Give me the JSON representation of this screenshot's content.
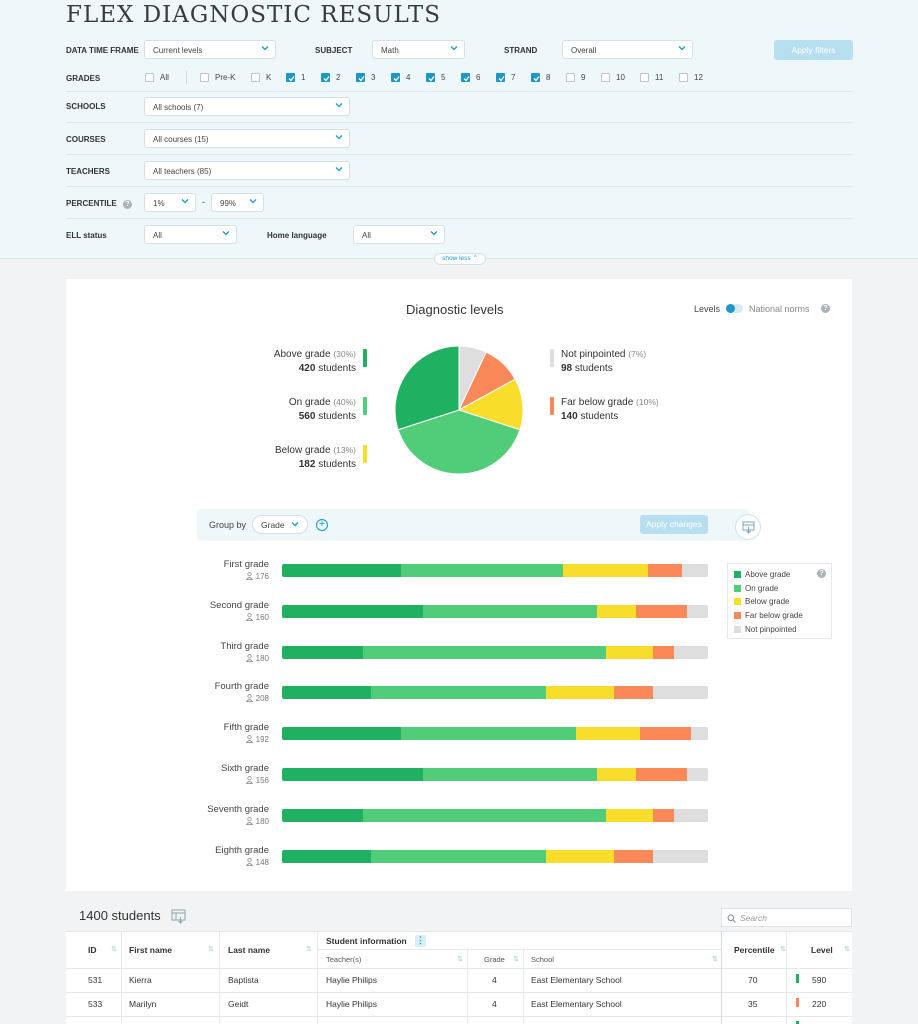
{
  "page": {
    "title": "FLEX DIAGNOSTIC RESULTS"
  },
  "filters": {
    "data_time_frame": {
      "label": "DATA TIME FRAME",
      "value": "Current levels"
    },
    "subject": {
      "label": "SUBJECT",
      "value": "Math"
    },
    "strand": {
      "label": "STRAND",
      "value": "Overall"
    },
    "apply_label": "Apply filters",
    "grades": {
      "label": "GRADES",
      "items": [
        {
          "label": "All",
          "checked": false
        },
        {
          "label": "Pre-K",
          "checked": false
        },
        {
          "label": "K",
          "checked": false
        },
        {
          "label": "1",
          "checked": true
        },
        {
          "label": "2",
          "checked": true
        },
        {
          "label": "3",
          "checked": true
        },
        {
          "label": "4",
          "checked": true
        },
        {
          "label": "5",
          "checked": true
        },
        {
          "label": "6",
          "checked": true
        },
        {
          "label": "7",
          "checked": true
        },
        {
          "label": "8",
          "checked": true
        },
        {
          "label": "9",
          "checked": false
        },
        {
          "label": "10",
          "checked": false
        },
        {
          "label": "11",
          "checked": false
        },
        {
          "label": "12",
          "checked": false
        }
      ]
    },
    "schools": {
      "label": "SCHOOLS",
      "value": "All schools (7)"
    },
    "courses": {
      "label": "COURSES",
      "value": "All courses (15)"
    },
    "teachers": {
      "label": "TEACHERS",
      "value": "All teachers (85)"
    },
    "percentile": {
      "label": "PERCENTILE",
      "from": "1%",
      "to": "99%",
      "separator": "-"
    },
    "ell_status": {
      "label": "ELL status",
      "value": "All"
    },
    "home_language": {
      "label": "Home language",
      "value": "All"
    },
    "show_less_label": "show less"
  },
  "diagnostic": {
    "title": "Diagnostic levels",
    "toggle": {
      "left_label": "Levels",
      "right_label": "National norms",
      "on": "Levels"
    },
    "students_word": "students",
    "pie_slices": [
      {
        "name": "Above grade",
        "pct_text": "(30%)",
        "count": "420",
        "value": 30,
        "color": "#20b061"
      },
      {
        "name": "On grade",
        "pct_text": "(40%)",
        "count": "560",
        "value": 40,
        "color": "#51cd79"
      },
      {
        "name": "Below grade",
        "pct_text": "(13%)",
        "count": "182",
        "value": 13,
        "color": "#f8dd2b"
      },
      {
        "name": "Far below grade",
        "pct_text": "(10%)",
        "count": "140",
        "value": 10,
        "color": "#fb8859"
      },
      {
        "name": "Not pinpointed",
        "pct_text": "(7%)",
        "count": "98",
        "value": 7,
        "color": "#dedede"
      }
    ]
  },
  "group_by": {
    "label": "Group by",
    "value": "Grade",
    "apply_label": "Apply changes"
  },
  "chart_data": {
    "type": "bar",
    "orientation": "horizontal",
    "stacked": true,
    "normalized_to_percent": true,
    "categories": [
      "First grade",
      "Second grade",
      "Third grade",
      "Fourth grade",
      "Fifth grade",
      "Sixth grade",
      "Seventh grade",
      "Eighth grade"
    ],
    "counts": [
      "176",
      "160",
      "180",
      "208",
      "192",
      "156",
      "180",
      "148"
    ],
    "series": [
      {
        "name": "Above grade",
        "color": "#20b061",
        "values": [
          28,
          33,
          19,
          21,
          28,
          33,
          19,
          21
        ]
      },
      {
        "name": "On grade",
        "color": "#51cd79",
        "values": [
          38,
          41,
          57,
          41,
          41,
          41,
          57,
          41
        ]
      },
      {
        "name": "Below grade",
        "color": "#f8dd2b",
        "values": [
          20,
          9,
          11,
          16,
          15,
          9,
          11,
          16
        ]
      },
      {
        "name": "Far below grade",
        "color": "#fb8859",
        "values": [
          8,
          12,
          5,
          9,
          12,
          12,
          5,
          9
        ]
      },
      {
        "name": "Not pinpointed",
        "color": "#dedede",
        "values": [
          6,
          5,
          8,
          13,
          4,
          5,
          8,
          13
        ]
      }
    ]
  },
  "table": {
    "count_label": "1400 students",
    "search_placeholder": "Search",
    "headers": {
      "id": "ID",
      "first_name": "First name",
      "last_name": "Last name",
      "student_info": "Student information",
      "teachers": "Teacher(s)",
      "grade": "Grade",
      "school": "School",
      "percentile": "Percentile",
      "level": "Level"
    },
    "rows": [
      {
        "id": "531",
        "first": "Kierra",
        "last": "Baptista",
        "teacher": "Haylie Philips",
        "grade": "4",
        "school": "East Elementary School",
        "percentile": "70",
        "level": "590",
        "level_color": "#20b061"
      },
      {
        "id": "533",
        "first": "Marilyn",
        "last": "Geidt",
        "teacher": "Haylie Philips",
        "grade": "4",
        "school": "East Elementary School",
        "percentile": "35",
        "level": "220",
        "level_color": "#fb8859"
      }
    ]
  }
}
